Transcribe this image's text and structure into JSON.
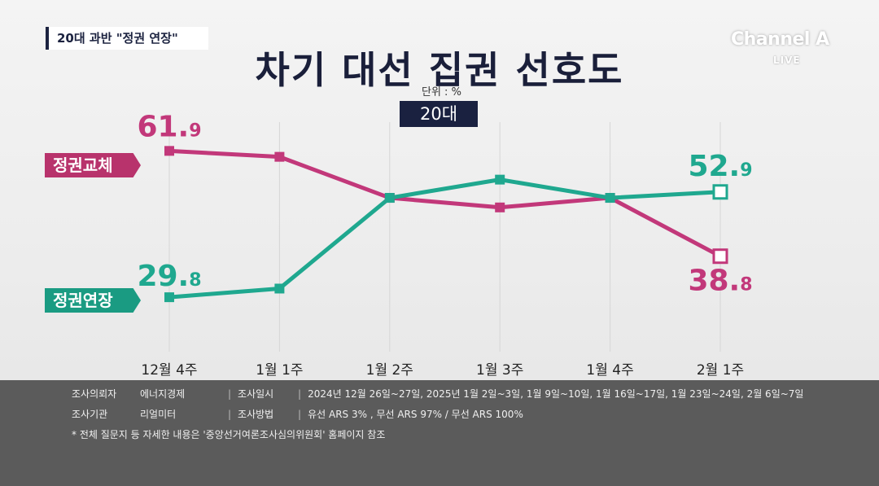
{
  "header": {
    "topic": "20대 과반 \"정권 연장\"",
    "logo": "Channel A",
    "live": "LIVE"
  },
  "chart_data": {
    "type": "line",
    "title": "차기 대선 집권 선호도",
    "unit": "단위 : %",
    "subgroup": "20대",
    "categories": [
      "12월 4주",
      "1월 1주",
      "1월 2주",
      "1월 3주",
      "1월 4주",
      "2월 1주"
    ],
    "ylim": [
      25,
      65
    ],
    "series": [
      {
        "name": "정권교체",
        "color": "#c2387a",
        "values": [
          61.9,
          60.6,
          51.6,
          49.5,
          51.6,
          38.8
        ],
        "first_label": "61.9",
        "last_label": "38.8"
      },
      {
        "name": "정권연장",
        "color": "#1fa88f",
        "values": [
          29.8,
          31.7,
          51.6,
          55.6,
          51.6,
          52.9
        ],
        "first_label": "29.8",
        "last_label": "52.9"
      }
    ]
  },
  "footer": {
    "rows": [
      {
        "label": "조사의뢰자",
        "value": "에너지경제",
        "label2": "조사일시",
        "value2": "2024년 12월 26일~27일, 2025년 1월 2일~3일, 1월 9일~10일, 1월 16일~17일, 1월 23일~24일, 2월 6일~7일"
      },
      {
        "label": "조사기관",
        "value": "리얼미터",
        "label2": "조사방법",
        "value2": "유선 ARS 3% , 무선 ARS 97% / 무선 ARS 100%"
      }
    ],
    "note": "* 전체 질문지 등 자세한 내용은 '중앙선거여론조사심의위원회' 홈페이지 참조"
  }
}
